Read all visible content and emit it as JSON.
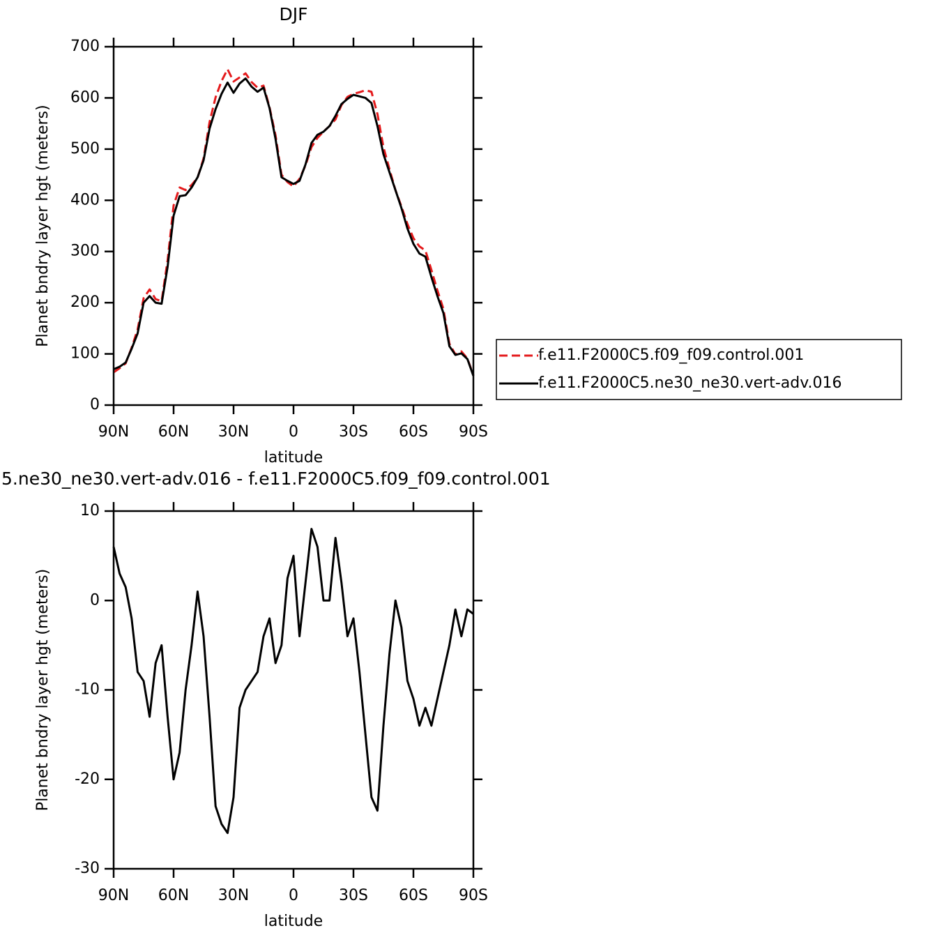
{
  "chart_data": [
    {
      "type": "line",
      "title": "DJF",
      "xlabel": "latitude",
      "ylabel": "Planet bndry layer hgt (meters)",
      "x": [
        90,
        87,
        84,
        81,
        78,
        75,
        72,
        69,
        66,
        63,
        60,
        57,
        54,
        51,
        48,
        45,
        42,
        39,
        36,
        33,
        30,
        27,
        24,
        21,
        18,
        15,
        12,
        9,
        6,
        3,
        0,
        -3,
        -6,
        -9,
        -12,
        -15,
        -18,
        -21,
        -24,
        -27,
        -30,
        -33,
        -36,
        -39,
        -42,
        -45,
        -48,
        -51,
        -54,
        -57,
        -60,
        -63,
        -66,
        -69,
        -72,
        -75,
        -78,
        -81,
        -84,
        -87,
        -90
      ],
      "xlim": [
        90,
        -90
      ],
      "xticks": [
        {
          "value": 90,
          "label": "90N"
        },
        {
          "value": 60,
          "label": "60N"
        },
        {
          "value": 30,
          "label": "30N"
        },
        0,
        {
          "value": -30,
          "label": "30S"
        },
        {
          "value": -60,
          "label": "60S"
        },
        {
          "value": -90,
          "label": "90S"
        }
      ],
      "ylim": [
        0,
        700
      ],
      "yticks": [
        0,
        100,
        200,
        300,
        400,
        500,
        600,
        700
      ],
      "legend": "right",
      "series": [
        {
          "name": "f.e11.F2000C5.f09_f09.control.001",
          "color": "#e41a1c",
          "line_style": "dashed",
          "values": [
            64,
            72,
            81.5,
            112,
            148,
            209,
            226,
            207,
            203,
            283,
            390,
            425,
            420,
            430,
            444,
            482,
            553,
            601,
            633,
            656,
            632,
            640,
            648,
            631,
            620,
            624,
            582,
            527,
            450,
            435.5,
            427,
            442,
            468,
            504,
            522,
            534,
            545,
            558,
            586,
            602,
            608,
            611,
            615,
            612,
            568.5,
            504,
            461,
            420,
            388,
            354,
            326,
            310,
            302,
            264,
            224,
            188,
            120,
            99,
            105,
            91,
            58.5
          ]
        },
        {
          "name": "f.e11.F2000C5.ne30_ne30.vert-adv.016",
          "color": "#000000",
          "line_style": "solid",
          "values": [
            70,
            75,
            83,
            110,
            140,
            200,
            213,
            200,
            198,
            270,
            370,
            408,
            410,
            425,
            445,
            478,
            540,
            578,
            608,
            630,
            610,
            628,
            638,
            622,
            612,
            620,
            580,
            520,
            445,
            438,
            432,
            438,
            470,
            512,
            528,
            534,
            545,
            565,
            588,
            598,
            606,
            603,
            600,
            590,
            545,
            490,
            455,
            420,
            385,
            345,
            315,
            296,
            290,
            250,
            213,
            180,
            115,
            98,
            101,
            90,
            57
          ]
        }
      ]
    },
    {
      "type": "line",
      "title": "5.ne30_ne30.vert-adv.016 - f.e11.F2000C5.f09_f09.control.001",
      "xlabel": "latitude",
      "ylabel": "Planet bndry layer hgt (meters)",
      "x": [
        90,
        87,
        84,
        81,
        78,
        75,
        72,
        69,
        66,
        63,
        60,
        57,
        54,
        51,
        48,
        45,
        42,
        39,
        36,
        33,
        30,
        27,
        24,
        21,
        18,
        15,
        12,
        9,
        6,
        3,
        0,
        -3,
        -6,
        -9,
        -12,
        -15,
        -18,
        -21,
        -24,
        -27,
        -30,
        -33,
        -36,
        -39,
        -42,
        -45,
        -48,
        -51,
        -54,
        -57,
        -60,
        -63,
        -66,
        -69,
        -72,
        -75,
        -78,
        -81,
        -84,
        -87,
        -90
      ],
      "xlim": [
        90,
        -90
      ],
      "xticks": [
        {
          "value": 90,
          "label": "90N"
        },
        {
          "value": 60,
          "label": "60N"
        },
        {
          "value": 30,
          "label": "30N"
        },
        0,
        {
          "value": -30,
          "label": "30S"
        },
        {
          "value": -60,
          "label": "60S"
        },
        {
          "value": -90,
          "label": "90S"
        }
      ],
      "ylim": [
        -30,
        10
      ],
      "yticks": [
        -30,
        -20,
        -10,
        0,
        10
      ],
      "series": [
        {
          "color": "#000000",
          "line_style": "solid",
          "values": [
            6,
            3,
            1.5,
            -2,
            -8,
            -9,
            -13,
            -7,
            -5,
            -13,
            -20,
            -17,
            -10,
            -5,
            1,
            -4,
            -13,
            -23,
            -25,
            -26,
            -22,
            -12,
            -10,
            -9,
            -8,
            -4,
            -2,
            -7,
            -5,
            2.5,
            5,
            -4,
            2,
            8,
            6,
            0,
            0,
            7,
            2,
            -4,
            -2,
            -8,
            -15,
            -22,
            -23.5,
            -14,
            -6,
            0,
            -3,
            -9,
            -11,
            -14,
            -12,
            -14,
            -11,
            -8,
            -5,
            -1,
            -4,
            -1,
            -1.5
          ]
        }
      ]
    }
  ]
}
